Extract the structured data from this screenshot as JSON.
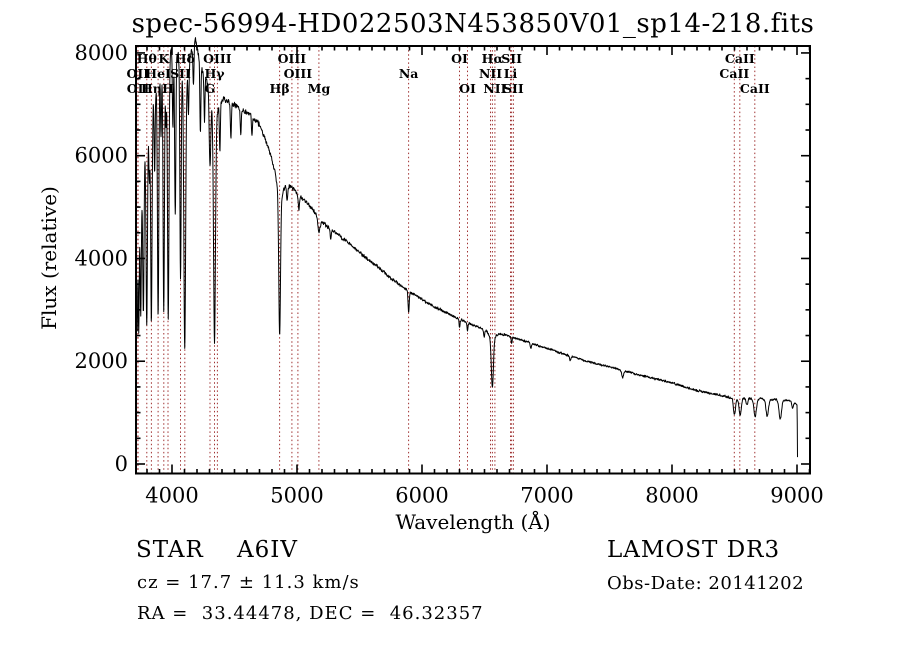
{
  "annotations": {
    "class_line": "STAR    A6IV",
    "cz_line": "cz = 17.7 ± 11.3 km/s",
    "radec_line": "RA =  33.44478, DEC =  46.32357",
    "survey": "LAMOST DR3",
    "obs_date": "Obs-Date: 20141202"
  },
  "chart_data": {
    "type": "line",
    "title": "spec-56994-HD022503N453850V01_sp14-218.fits",
    "xlabel": "Wavelength (Å)",
    "ylabel": "Flux (relative)",
    "xlim": [
      3712,
      9104
    ],
    "ylim": [
      -185,
      8135
    ],
    "x_ticks": [
      4000,
      5000,
      6000,
      7000,
      8000,
      9000
    ],
    "y_ticks": [
      0,
      2000,
      4000,
      6000,
      8000
    ],
    "x_minor_step": 100,
    "y_minor_step": 500,
    "grid": false,
    "legend": "none",
    "line_color": "#000000",
    "marker_color": "#a03232",
    "spectral_lines": [
      {
        "wavelength": 3726,
        "label": "OII",
        "row": 2
      },
      {
        "wavelength": 3729,
        "label": "OII",
        "row": 3
      },
      {
        "wavelength": 3798,
        "label": "Hθ",
        "row": 1
      },
      {
        "wavelength": 3835,
        "label": "Hη",
        "row": 3
      },
      {
        "wavelength": 3889,
        "label": "HeI",
        "row": 2
      },
      {
        "wavelength": 3934,
        "label": "K",
        "row": 1
      },
      {
        "wavelength": 3968,
        "label": "H",
        "row": 3
      },
      {
        "wavelength": 4068,
        "label": "SII",
        "row": 2
      },
      {
        "wavelength": 4102,
        "label": "Hδ",
        "row": 1
      },
      {
        "wavelength": 4304,
        "label": "G",
        "row": 3
      },
      {
        "wavelength": 4340,
        "label": "Hγ",
        "row": 2
      },
      {
        "wavelength": 4363,
        "label": "OIII",
        "row": 1
      },
      {
        "wavelength": 4861,
        "label": "Hβ",
        "row": 3
      },
      {
        "wavelength": 4959,
        "label": "OIII",
        "row": 1
      },
      {
        "wavelength": 5007,
        "label": "OIII",
        "row": 2
      },
      {
        "wavelength": 5175,
        "label": "Mg",
        "row": 3
      },
      {
        "wavelength": 5893,
        "label": "Na",
        "row": 2
      },
      {
        "wavelength": 6300,
        "label": "OI",
        "row": 1
      },
      {
        "wavelength": 6364,
        "label": "OI",
        "row": 3
      },
      {
        "wavelength": 6548,
        "label": "NII",
        "row": 2
      },
      {
        "wavelength": 6563,
        "label": "Hα",
        "row": 1
      },
      {
        "wavelength": 6583,
        "label": "NII",
        "row": 3
      },
      {
        "wavelength": 6708,
        "label": "Li",
        "row": 2
      },
      {
        "wavelength": 6717,
        "label": "SII",
        "row": 1
      },
      {
        "wavelength": 6731,
        "label": "SII",
        "row": 3
      },
      {
        "wavelength": 8498,
        "label": "CaII",
        "row": 2
      },
      {
        "wavelength": 8542,
        "label": "CaII",
        "row": 1
      },
      {
        "wavelength": 8662,
        "label": "CaII",
        "row": 3
      }
    ],
    "continuum": [
      [
        3712,
        3400
      ],
      [
        3725,
        4600
      ],
      [
        3745,
        5100
      ],
      [
        3760,
        5400
      ],
      [
        3780,
        6000
      ],
      [
        3805,
        6450
      ],
      [
        3825,
        6700
      ],
      [
        3850,
        7100
      ],
      [
        3875,
        7350
      ],
      [
        3905,
        7700
      ],
      [
        3925,
        7800
      ],
      [
        3955,
        7950
      ],
      [
        3995,
        8050
      ],
      [
        4040,
        8100
      ],
      [
        4080,
        8050
      ],
      [
        4120,
        8050
      ],
      [
        4160,
        8100
      ],
      [
        4185,
        8280
      ],
      [
        4195,
        8150
      ],
      [
        4215,
        7900
      ],
      [
        4245,
        7650
      ],
      [
        4275,
        7500
      ],
      [
        4330,
        7300
      ],
      [
        4390,
        7150
      ],
      [
        4450,
        7050
      ],
      [
        4520,
        6950
      ],
      [
        4600,
        6850
      ],
      [
        4650,
        6750
      ],
      [
        4700,
        6600
      ],
      [
        4750,
        6300
      ],
      [
        4800,
        5950
      ],
      [
        4830,
        5750
      ],
      [
        4880,
        5500
      ],
      [
        4920,
        5450
      ],
      [
        4970,
        5350
      ],
      [
        5020,
        5220
      ],
      [
        5080,
        5080
      ],
      [
        5140,
        4900
      ],
      [
        5200,
        4700
      ],
      [
        5270,
        4580
      ],
      [
        5350,
        4420
      ],
      [
        5450,
        4220
      ],
      [
        5550,
        4020
      ],
      [
        5650,
        3830
      ],
      [
        5750,
        3620
      ],
      [
        5850,
        3430
      ],
      [
        5950,
        3280
      ],
      [
        6050,
        3130
      ],
      [
        6150,
        3000
      ],
      [
        6250,
        2880
      ],
      [
        6350,
        2760
      ],
      [
        6450,
        2660
      ],
      [
        6520,
        2600
      ],
      [
        6600,
        2560
      ],
      [
        6700,
        2480
      ],
      [
        6800,
        2410
      ],
      [
        6900,
        2330
      ],
      [
        7000,
        2250
      ],
      [
        7100,
        2170
      ],
      [
        7200,
        2090
      ],
      [
        7300,
        2010
      ],
      [
        7400,
        1950
      ],
      [
        7500,
        1890
      ],
      [
        7600,
        1830
      ],
      [
        7700,
        1760
      ],
      [
        7800,
        1700
      ],
      [
        7900,
        1640
      ],
      [
        8000,
        1580
      ],
      [
        8100,
        1500
      ],
      [
        8200,
        1430
      ],
      [
        8300,
        1380
      ],
      [
        8400,
        1330
      ],
      [
        8470,
        1290
      ],
      [
        8550,
        1280
      ],
      [
        8700,
        1270
      ],
      [
        8850,
        1255
      ],
      [
        8950,
        1230
      ],
      [
        9000,
        1150
      ],
      [
        9002,
        800
      ],
      [
        9004,
        130
      ]
    ],
    "absorption_features": [
      [
        3714,
        600,
        3
      ],
      [
        3722,
        1700,
        3.5
      ],
      [
        3734,
        2300,
        4
      ],
      [
        3750,
        2250,
        4.5
      ],
      [
        3771,
        2800,
        5
      ],
      [
        3798,
        3600,
        5.5
      ],
      [
        3819,
        1100,
        4
      ],
      [
        3835,
        4100,
        5.5
      ],
      [
        3861,
        1500,
        4
      ],
      [
        3889,
        4650,
        5.5
      ],
      [
        3912,
        1400,
        4
      ],
      [
        3934,
        4850,
        5.5
      ],
      [
        3952,
        1300,
        4
      ],
      [
        3970,
        5150,
        6
      ],
      [
        4007,
        1500,
        4
      ],
      [
        4026,
        3200,
        5
      ],
      [
        4068,
        4200,
        5
      ],
      [
        4102,
        5200,
        7
      ],
      [
        4102,
        600,
        28
      ],
      [
        4132,
        900,
        4
      ],
      [
        4172,
        800,
        4
      ],
      [
        4227,
        1300,
        4
      ],
      [
        4260,
        900,
        4
      ],
      [
        4304,
        1400,
        6
      ],
      [
        4340,
        4400,
        7.5
      ],
      [
        4340,
        500,
        28
      ],
      [
        4383,
        900,
        4
      ],
      [
        4471,
        700,
        4
      ],
      [
        4550,
        500,
        4
      ],
      [
        4640,
        400,
        4
      ],
      [
        4861,
        2700,
        7
      ],
      [
        4861,
        350,
        26
      ],
      [
        4922,
        300,
        5
      ],
      [
        5015,
        280,
        5
      ],
      [
        5175,
        260,
        9
      ],
      [
        5270,
        200,
        5
      ],
      [
        5893,
        430,
        4.5
      ],
      [
        6300,
        180,
        3.5
      ],
      [
        6364,
        130,
        3.5
      ],
      [
        6497,
        150,
        4
      ],
      [
        6563,
        950,
        8
      ],
      [
        6563,
        150,
        24
      ],
      [
        6717,
        120,
        4
      ],
      [
        6870,
        110,
        5
      ],
      [
        7186,
        90,
        6
      ],
      [
        7605,
        140,
        7
      ],
      [
        8500,
        330,
        8
      ],
      [
        8545,
        330,
        9
      ],
      [
        8600,
        140,
        6
      ],
      [
        8665,
        350,
        10
      ],
      [
        8762,
        330,
        10
      ],
      [
        8866,
        380,
        10
      ],
      [
        8965,
        130,
        6
      ]
    ],
    "noise_profile": [
      [
        3712,
        120
      ],
      [
        3900,
        110
      ],
      [
        4100,
        95
      ],
      [
        4300,
        85
      ],
      [
        4500,
        65
      ],
      [
        4800,
        55
      ],
      [
        5100,
        45
      ],
      [
        5400,
        42
      ],
      [
        5800,
        38
      ],
      [
        6200,
        32
      ],
      [
        6600,
        28
      ],
      [
        7000,
        25
      ],
      [
        7500,
        24
      ],
      [
        8000,
        27
      ],
      [
        8400,
        30
      ],
      [
        8700,
        26
      ],
      [
        9004,
        24
      ]
    ]
  }
}
